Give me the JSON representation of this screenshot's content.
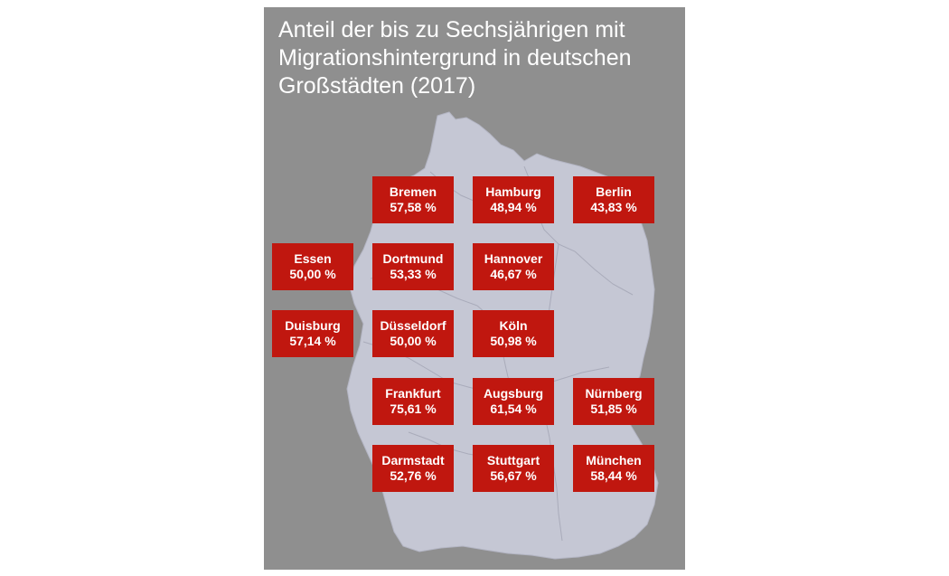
{
  "title": "Anteil der bis zu Sechsjährigen mit Migrationshintergrund in deutschen Großstädten (2017)",
  "colors": {
    "panel_background": "#8f8f8f",
    "map_fill": "#c5c7d4",
    "box_fill": "#c0170f",
    "text": "#ffffff"
  },
  "cities": [
    {
      "id": "bremen",
      "name": "Bremen",
      "value": "57,58 %"
    },
    {
      "id": "hamburg",
      "name": "Hamburg",
      "value": "48,94 %"
    },
    {
      "id": "berlin",
      "name": "Berlin",
      "value": "43,83 %"
    },
    {
      "id": "essen",
      "name": "Essen",
      "value": "50,00 %"
    },
    {
      "id": "dortmund",
      "name": "Dortmund",
      "value": "53,33 %"
    },
    {
      "id": "hannover",
      "name": "Hannover",
      "value": "46,67 %"
    },
    {
      "id": "duisburg",
      "name": "Duisburg",
      "value": "57,14 %"
    },
    {
      "id": "duesseldorf",
      "name": "Düsseldorf",
      "value": "50,00 %"
    },
    {
      "id": "koeln",
      "name": "Köln",
      "value": "50,98 %"
    },
    {
      "id": "frankfurt",
      "name": "Frankfurt",
      "value": "75,61 %"
    },
    {
      "id": "augsburg",
      "name": "Augsburg",
      "value": "61,54 %"
    },
    {
      "id": "nuernberg",
      "name": "Nürnberg",
      "value": "51,85 %"
    },
    {
      "id": "darmstadt",
      "name": "Darmstadt",
      "value": "52,76 %"
    },
    {
      "id": "stuttgart",
      "name": "Stuttgart",
      "value": "56,67 %"
    },
    {
      "id": "muenchen",
      "name": "München",
      "value": "58,44 %"
    }
  ]
}
